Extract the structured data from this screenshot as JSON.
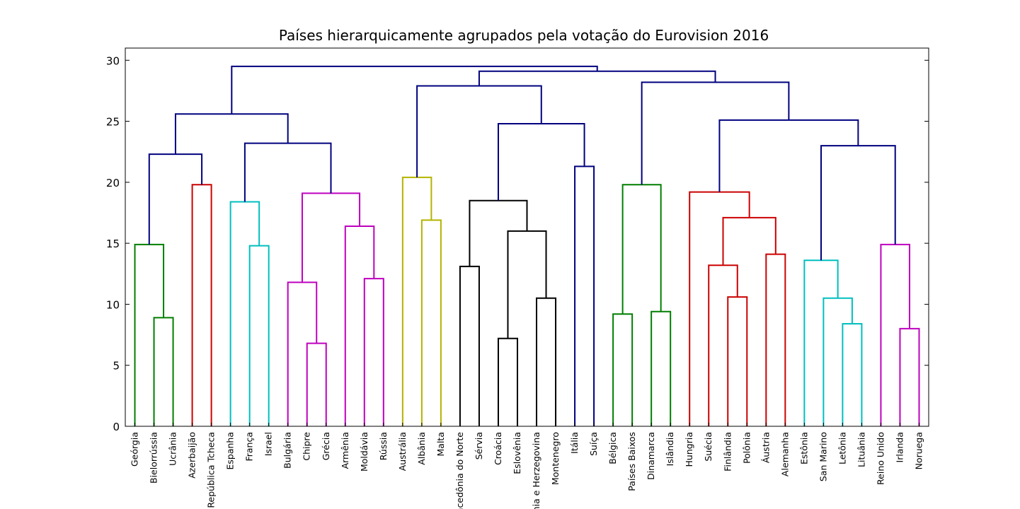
{
  "chart_data": {
    "type": "dendrogram",
    "title": "Países hierarquicamente agrupados pela votação do Eurovision 2016",
    "xlabel": "",
    "ylabel": "",
    "ylim": [
      0,
      31
    ],
    "yticks": [
      0,
      5,
      10,
      15,
      20,
      25,
      30
    ],
    "grid": false,
    "leaves": [
      "Geórgia",
      "Bielorrússia",
      "Ucrânia",
      "Azerbaijão",
      "República Tcheca",
      "Espanha",
      "França",
      "Israel",
      "Bulgária",
      "Chipre",
      "Grécia",
      "Armênia",
      "Moldávia",
      "Rússia",
      "Austrália",
      "Albânia",
      "Malta",
      "Macedônia do Norte",
      "Sérvia",
      "Croácia",
      "Eslovênia",
      "Bósnia e Herzegovina",
      "Montenegro",
      "Itália",
      "Suíça",
      "Bélgica",
      "Países Baixos",
      "Dinamarca",
      "Islândia",
      "Hungria",
      "Suécia",
      "Finlândia",
      "Polônia",
      "Áustria",
      "Alemanha",
      "Estônia",
      "San Marino",
      "Letônia",
      "Lituânia",
      "Reino Unido",
      "Irlanda",
      "Noruega"
    ],
    "colors": {
      "green": "#007f00",
      "red": "#cc0000",
      "cyan": "#00bfbf",
      "magenta": "#bf00bf",
      "olive": "#b3b300",
      "black": "#000000",
      "blue": "#00007f"
    },
    "merges": [
      {
        "a": "L1",
        "b": "L2",
        "height": 8.9,
        "color": "green"
      },
      {
        "a": "L0",
        "b": "M0",
        "height": 14.9,
        "color": "green"
      },
      {
        "a": "L3",
        "b": "L4",
        "height": 19.8,
        "color": "red"
      },
      {
        "a": "M1",
        "b": "M2",
        "height": 22.3,
        "color": "blue"
      },
      {
        "a": "L6",
        "b": "L7",
        "height": 14.8,
        "color": "cyan"
      },
      {
        "a": "L5",
        "b": "M4",
        "height": 18.4,
        "color": "cyan"
      },
      {
        "a": "L9",
        "b": "L10",
        "height": 6.8,
        "color": "magenta"
      },
      {
        "a": "L8",
        "b": "M6",
        "height": 11.8,
        "color": "magenta"
      },
      {
        "a": "L12",
        "b": "L13",
        "height": 12.1,
        "color": "magenta"
      },
      {
        "a": "L11",
        "b": "M8",
        "height": 16.4,
        "color": "magenta"
      },
      {
        "a": "M7",
        "b": "M9",
        "height": 19.1,
        "color": "magenta"
      },
      {
        "a": "M5",
        "b": "M10",
        "height": 23.2,
        "color": "blue"
      },
      {
        "a": "M3",
        "b": "M11",
        "height": 25.6,
        "color": "blue"
      },
      {
        "a": "L15",
        "b": "L16",
        "height": 16.9,
        "color": "olive"
      },
      {
        "a": "L14",
        "b": "M13",
        "height": 20.4,
        "color": "olive"
      },
      {
        "a": "L17",
        "b": "L18",
        "height": 13.1,
        "color": "black"
      },
      {
        "a": "L19",
        "b": "L20",
        "height": 7.2,
        "color": "black"
      },
      {
        "a": "L21",
        "b": "L22",
        "height": 10.5,
        "color": "black"
      },
      {
        "a": "M16",
        "b": "M17",
        "height": 16.0,
        "color": "black"
      },
      {
        "a": "M15",
        "b": "M18",
        "height": 18.5,
        "color": "black"
      },
      {
        "a": "L23",
        "b": "L24",
        "height": 21.3,
        "color": "blue"
      },
      {
        "a": "M19",
        "b": "M20",
        "height": 24.8,
        "color": "blue"
      },
      {
        "a": "M14",
        "b": "M21",
        "height": 27.9,
        "color": "blue"
      },
      {
        "a": "L25",
        "b": "L26",
        "height": 9.2,
        "color": "green"
      },
      {
        "a": "L27",
        "b": "L28",
        "height": 9.4,
        "color": "green"
      },
      {
        "a": "M23",
        "b": "M24",
        "height": 19.8,
        "color": "green"
      },
      {
        "a": "L31",
        "b": "L32",
        "height": 10.6,
        "color": "red"
      },
      {
        "a": "L30",
        "b": "M26",
        "height": 13.2,
        "color": "red"
      },
      {
        "a": "L33",
        "b": "L34",
        "height": 14.1,
        "color": "red"
      },
      {
        "a": "M27",
        "b": "M28",
        "height": 17.1,
        "color": "red"
      },
      {
        "a": "L29",
        "b": "M29",
        "height": 19.2,
        "color": "red"
      },
      {
        "a": "L37",
        "b": "L38",
        "height": 8.4,
        "color": "cyan"
      },
      {
        "a": "L36",
        "b": "M31",
        "height": 10.5,
        "color": "cyan"
      },
      {
        "a": "L35",
        "b": "M32",
        "height": 13.6,
        "color": "cyan"
      },
      {
        "a": "L40",
        "b": "L41",
        "height": 8.0,
        "color": "magenta"
      },
      {
        "a": "L39",
        "b": "M34",
        "height": 14.9,
        "color": "magenta"
      },
      {
        "a": "M33",
        "b": "M35",
        "height": 23.0,
        "color": "blue"
      },
      {
        "a": "M30",
        "b": "M36",
        "height": 25.1,
        "color": "blue"
      },
      {
        "a": "M25",
        "b": "M37",
        "height": 28.2,
        "color": "blue"
      },
      {
        "a": "M22",
        "b": "M38",
        "height": 29.1,
        "color": "blue"
      },
      {
        "a": "M12",
        "b": "M39",
        "height": 29.5,
        "color": "blue"
      }
    ]
  }
}
